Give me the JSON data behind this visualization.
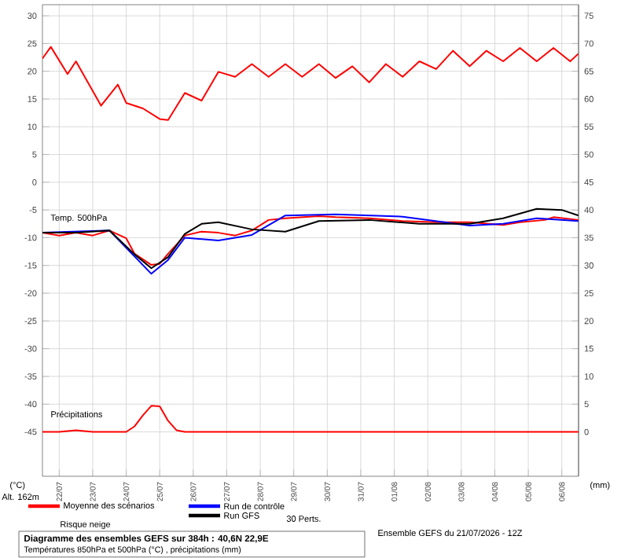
{
  "chart_data": {
    "type": "line",
    "title": "Diagramme des ensembles GEFS sur 384h : 40,6N 22,9E",
    "subtitle": "Températures 850hPa et 500hPa (°C) , précipitations (mm)",
    "ylabel": "(°C)",
    "y2label": "(mm)",
    "annotations": [
      "Temp. 500hPa",
      "Précipitations",
      "Alt. 162m",
      "30 Perts.",
      "Risque neige",
      "Ensemble GEFS du 21/07/2026 - 12Z"
    ],
    "xlim": [
      "2026-07-21T12:00",
      "2026-08-06T12:00"
    ],
    "ylim": [
      -53,
      32
    ],
    "y2lim": [
      -8,
      77
    ],
    "xticks": [
      {
        "value": "2026-07-22",
        "label": "22/07"
      },
      {
        "value": "2026-07-23",
        "label": "23/07"
      },
      {
        "value": "2026-07-24",
        "label": "24/07"
      },
      {
        "value": "2026-07-25",
        "label": "25/07"
      },
      {
        "value": "2026-07-26",
        "label": "26/07"
      },
      {
        "value": "2026-07-27",
        "label": "27/07"
      },
      {
        "value": "2026-07-28",
        "label": "28/07"
      },
      {
        "value": "2026-07-29",
        "label": "29/07"
      },
      {
        "value": "2026-07-30",
        "label": "30/07"
      },
      {
        "value": "2026-07-31",
        "label": "31/07"
      },
      {
        "value": "2026-08-01",
        "label": "01/08"
      },
      {
        "value": "2026-08-02",
        "label": "02/08"
      },
      {
        "value": "2026-08-03",
        "label": "03/08"
      },
      {
        "value": "2026-08-04",
        "label": "04/08"
      },
      {
        "value": "2026-08-05",
        "label": "05/08"
      },
      {
        "value": "2026-08-06",
        "label": "06/08"
      }
    ],
    "yticks": [
      -45,
      -40,
      -35,
      -30,
      -25,
      -20,
      -15,
      -10,
      -5,
      0,
      5,
      10,
      15,
      20,
      25,
      30
    ],
    "y2ticks": [
      0,
      5,
      10,
      15,
      20,
      25,
      30,
      35,
      40,
      45,
      50,
      55,
      60,
      65,
      70,
      75
    ],
    "grid": true,
    "legend": "bottom",
    "marker": "none",
    "line_style": "solid",
    "series": [
      {
        "color": "#ff0000",
        "x": [
          "2026-07-21T12:00",
          "2026-07-21T18:00",
          "2026-07-22T06:00",
          "2026-07-22T12:00",
          "2026-07-23T06:00",
          "2026-07-23T18:00",
          "2026-07-24T00:00",
          "2026-07-24T12:00",
          "2026-07-25T00:00",
          "2026-07-25T06:00",
          "2026-07-25T18:00",
          "2026-07-26T06:00",
          "2026-07-26T18:00",
          "2026-07-27T06:00",
          "2026-07-27T18:00",
          "2026-07-28T06:00",
          "2026-07-28T18:00",
          "2026-07-29T06:00",
          "2026-07-29T18:00",
          "2026-07-30T06:00",
          "2026-07-30T18:00",
          "2026-07-31T06:00",
          "2026-07-31T18:00",
          "2026-08-01T06:00",
          "2026-08-01T18:00",
          "2026-08-02T06:00",
          "2026-08-02T18:00",
          "2026-08-03T06:00",
          "2026-08-03T18:00",
          "2026-08-04T06:00",
          "2026-08-04T18:00",
          "2026-08-05T06:00",
          "2026-08-05T18:00",
          "2026-08-06T06:00",
          "2026-08-06T12:00"
        ],
        "values": [
          22.3,
          24.4,
          19.5,
          21.8,
          13.8,
          17.6,
          14.3,
          13.3,
          11.4,
          11.2,
          16.1,
          14.7,
          19.9,
          19.0,
          21.3,
          19.0,
          21.3,
          19.0,
          21.3,
          18.8,
          20.9,
          18.0,
          21.3,
          19.0,
          21.8,
          20.4,
          23.7,
          20.9,
          23.7,
          21.8,
          24.2,
          21.8,
          24.2,
          21.8,
          23.2
        ]
      },
      {
        "name": "Moyenne des scénarios",
        "color": "#ff0000",
        "x": [
          "2026-07-21T12:00",
          "2026-07-22T00:00",
          "2026-07-22T12:00",
          "2026-07-23T00:00",
          "2026-07-23T12:00",
          "2026-07-24T00:00",
          "2026-07-24T06:00",
          "2026-07-24T18:00",
          "2026-07-25T00:00",
          "2026-07-25T06:00",
          "2026-07-25T18:00",
          "2026-07-26T06:00",
          "2026-07-26T18:00",
          "2026-07-27T06:00",
          "2026-07-27T18:00",
          "2026-07-28T06:00",
          "2026-07-28T18:00",
          "2026-07-29T18:00",
          "2026-07-30T06:00",
          "2026-07-31T06:00",
          "2026-08-01T06:00",
          "2026-08-02T06:00",
          "2026-08-03T06:00",
          "2026-08-04T06:00",
          "2026-08-04T18:00",
          "2026-08-05T12:00",
          "2026-08-05T18:00",
          "2026-08-06T12:00"
        ],
        "values": [
          -9.1,
          -9.6,
          -9.1,
          -9.6,
          -8.7,
          -10.1,
          -12.9,
          -14.9,
          -14.7,
          -12.9,
          -9.6,
          -8.9,
          -9.1,
          -9.6,
          -8.7,
          -6.8,
          -6.5,
          -6.1,
          -6.3,
          -6.5,
          -7.0,
          -7.2,
          -7.2,
          -7.7,
          -7.2,
          -6.8,
          -6.3,
          -6.8
        ]
      },
      {
        "name": "Run de contrôle",
        "color": "#0000ff",
        "x": [
          "2026-07-21T12:00",
          "2026-07-23T12:00",
          "2026-07-24T18:00",
          "2026-07-25T06:00",
          "2026-07-25T18:00",
          "2026-07-26T18:00",
          "2026-07-27T18:00",
          "2026-07-28T18:00",
          "2026-07-30T06:00",
          "2026-08-01T06:00",
          "2026-08-02T06:00",
          "2026-08-03T06:00",
          "2026-08-04T06:00",
          "2026-08-05T06:00",
          "2026-08-06T12:00"
        ],
        "values": [
          -9.1,
          -8.7,
          -16.5,
          -14,
          -10,
          -10.5,
          -9.5,
          -6,
          -5.8,
          -6.2,
          -7.0,
          -7.8,
          -7.5,
          -6.5,
          -7.0
        ]
      },
      {
        "name": "Run GFS",
        "color": "#000000",
        "x": [
          "2026-07-21T12:00",
          "2026-07-22T12:00",
          "2026-07-23T12:00",
          "2026-07-24T06:00",
          "2026-07-24T18:00",
          "2026-07-25T06:00",
          "2026-07-25T18:00",
          "2026-07-26T06:00",
          "2026-07-26T18:00",
          "2026-07-27T18:00",
          "2026-07-28T18:00",
          "2026-07-29T18:00",
          "2026-07-31T06:00",
          "2026-08-01T18:00",
          "2026-08-03T06:00",
          "2026-08-04T06:00",
          "2026-08-05T06:00",
          "2026-08-06T00:00",
          "2026-08-06T12:00"
        ],
        "values": [
          -9.1,
          -9.1,
          -8.7,
          -13,
          -15.5,
          -13.5,
          -9.3,
          -7.5,
          -7.2,
          -8.5,
          -8.9,
          -7,
          -6.8,
          -7.5,
          -7.5,
          -6.5,
          -4.8,
          -5.0,
          -6.0
        ]
      },
      {
        "color": "#ff0000",
        "axis": "y2",
        "x": [
          "2026-07-21T12:00",
          "2026-07-22T00:00",
          "2026-07-22T12:00",
          "2026-07-23T00:00",
          "2026-07-24T00:00",
          "2026-07-24T06:00",
          "2026-07-24T12:00",
          "2026-07-24T18:00",
          "2026-07-25T00:00",
          "2026-07-25T06:00",
          "2026-07-25T12:00",
          "2026-07-25T18:00",
          "2026-07-26T12:00",
          "2026-07-27T12:00",
          "2026-07-28T12:00",
          "2026-07-29T12:00",
          "2026-07-30T12:00",
          "2026-07-31T12:00",
          "2026-08-01T12:00",
          "2026-08-02T12:00",
          "2026-08-03T12:00",
          "2026-08-04T12:00",
          "2026-08-05T12:00",
          "2026-08-06T12:00"
        ],
        "values": [
          0,
          0,
          0.3,
          0,
          0,
          1,
          3,
          4.7,
          4.6,
          2,
          0.3,
          0,
          0,
          0,
          0,
          0,
          0,
          0,
          0,
          0,
          0,
          0,
          0,
          0
        ]
      }
    ]
  }
}
